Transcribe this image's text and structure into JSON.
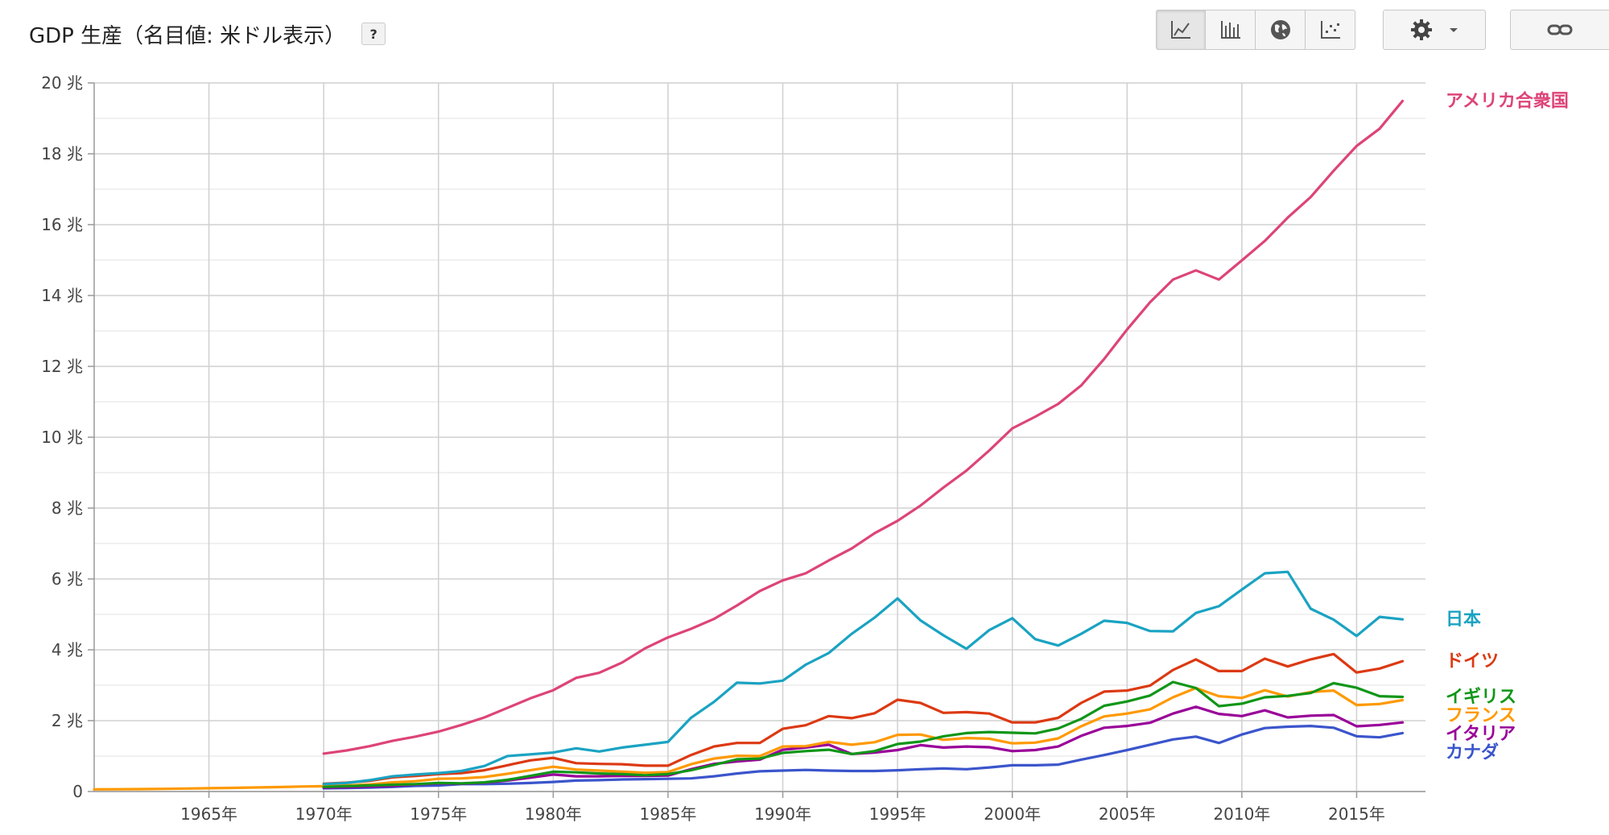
{
  "header": {
    "title": "GDP 生産（名目値: 米ドル表示）",
    "help_label": "?"
  },
  "toolbar": {
    "buttons": [
      {
        "name": "line-chart-button",
        "icon": "line-chart-icon",
        "active": true
      },
      {
        "name": "bar-chart-button",
        "icon": "bar-chart-icon",
        "active": false
      },
      {
        "name": "map-button",
        "icon": "globe-icon",
        "active": false
      },
      {
        "name": "scatter-button",
        "icon": "scatter-icon",
        "active": false
      }
    ],
    "settings_icon": "gear-icon",
    "link_icon": "link-icon"
  },
  "chart_data": {
    "type": "line",
    "title": "GDP 生産（名目値: 米ドル表示）",
    "xlabel": "",
    "ylabel": "",
    "xlim": [
      1960,
      2018
    ],
    "ylim": [
      0,
      20
    ],
    "y_ticks": [
      {
        "value": 0,
        "label": "0"
      },
      {
        "value": 2,
        "label": "2 兆"
      },
      {
        "value": 4,
        "label": "4 兆"
      },
      {
        "value": 6,
        "label": "6 兆"
      },
      {
        "value": 8,
        "label": "8 兆"
      },
      {
        "value": 10,
        "label": "10 兆"
      },
      {
        "value": 12,
        "label": "12 兆"
      },
      {
        "value": 14,
        "label": "14 兆"
      },
      {
        "value": 16,
        "label": "16 兆"
      },
      {
        "value": 18,
        "label": "18 兆"
      },
      {
        "value": 20,
        "label": "20 兆"
      }
    ],
    "x_ticks": [
      {
        "value": 1965,
        "label": "1965年"
      },
      {
        "value": 1970,
        "label": "1970年"
      },
      {
        "value": 1975,
        "label": "1975年"
      },
      {
        "value": 1980,
        "label": "1980年"
      },
      {
        "value": 1985,
        "label": "1985年"
      },
      {
        "value": 1990,
        "label": "1990年"
      },
      {
        "value": 1995,
        "label": "1995年"
      },
      {
        "value": 2000,
        "label": "2000年"
      },
      {
        "value": 2005,
        "label": "2005年"
      },
      {
        "value": 2010,
        "label": "2010年"
      },
      {
        "value": 2015,
        "label": "2015年"
      }
    ],
    "grid": true,
    "legend": "right-end labels",
    "series": [
      {
        "name": "アメリカ合衆国",
        "color": "#dd4477",
        "start": 1970,
        "values": [
          1.07,
          1.16,
          1.28,
          1.43,
          1.55,
          1.69,
          1.88,
          2.09,
          2.36,
          2.63,
          2.86,
          3.21,
          3.35,
          3.64,
          4.04,
          4.35,
          4.59,
          4.87,
          5.25,
          5.66,
          5.96,
          6.16,
          6.52,
          6.86,
          7.29,
          7.64,
          8.07,
          8.58,
          9.06,
          9.63,
          10.25,
          10.58,
          10.94,
          11.46,
          12.21,
          13.04,
          13.81,
          14.45,
          14.71,
          14.45,
          14.99,
          15.54,
          16.2,
          16.78,
          17.52,
          18.22,
          18.71,
          19.49
        ]
      },
      {
        "name": "日本",
        "color": "#1aa3c2",
        "start": 1970,
        "values": [
          0.21,
          0.24,
          0.32,
          0.43,
          0.48,
          0.52,
          0.58,
          0.72,
          1.0,
          1.05,
          1.1,
          1.22,
          1.13,
          1.24,
          1.32,
          1.4,
          2.08,
          2.53,
          3.07,
          3.05,
          3.13,
          3.58,
          3.91,
          4.45,
          4.91,
          5.45,
          4.83,
          4.41,
          4.03,
          4.56,
          4.89,
          4.3,
          4.12,
          4.45,
          4.82,
          4.76,
          4.53,
          4.52,
          5.04,
          5.23,
          5.7,
          6.16,
          6.2,
          5.16,
          4.85,
          4.39,
          4.93,
          4.86
        ]
      },
      {
        "name": "ドイツ",
        "color": "#dc3912",
        "start": 1970,
        "values": [
          0.22,
          0.25,
          0.3,
          0.4,
          0.44,
          0.49,
          0.52,
          0.6,
          0.74,
          0.88,
          0.95,
          0.8,
          0.78,
          0.77,
          0.73,
          0.73,
          1.03,
          1.27,
          1.37,
          1.37,
          1.77,
          1.87,
          2.13,
          2.07,
          2.21,
          2.59,
          2.5,
          2.22,
          2.24,
          2.2,
          1.95,
          1.95,
          2.08,
          2.5,
          2.82,
          2.85,
          2.99,
          3.43,
          3.73,
          3.4,
          3.4,
          3.75,
          3.53,
          3.73,
          3.88,
          3.36,
          3.47,
          3.68
        ]
      },
      {
        "name": "イギリス",
        "color": "#109618",
        "start": 1970,
        "values": [
          0.13,
          0.15,
          0.17,
          0.19,
          0.21,
          0.24,
          0.23,
          0.26,
          0.33,
          0.44,
          0.56,
          0.54,
          0.51,
          0.49,
          0.46,
          0.49,
          0.6,
          0.75,
          0.91,
          0.93,
          1.09,
          1.14,
          1.18,
          1.06,
          1.14,
          1.34,
          1.41,
          1.56,
          1.65,
          1.68,
          1.66,
          1.64,
          1.78,
          2.05,
          2.42,
          2.54,
          2.71,
          3.09,
          2.92,
          2.41,
          2.48,
          2.66,
          2.7,
          2.78,
          3.06,
          2.93,
          2.69,
          2.67
        ]
      },
      {
        "name": "フランス",
        "color": "#ff9900",
        "start": 1970,
        "values": [
          0.15,
          0.17,
          0.2,
          0.26,
          0.29,
          0.36,
          0.37,
          0.41,
          0.5,
          0.6,
          0.7,
          0.62,
          0.59,
          0.56,
          0.53,
          0.55,
          0.77,
          0.93,
          1.01,
          1.0,
          1.27,
          1.28,
          1.4,
          1.32,
          1.39,
          1.6,
          1.61,
          1.46,
          1.51,
          1.49,
          1.36,
          1.38,
          1.5,
          1.84,
          2.12,
          2.2,
          2.32,
          2.66,
          2.92,
          2.69,
          2.64,
          2.86,
          2.68,
          2.81,
          2.85,
          2.44,
          2.47,
          2.58
        ]
      },
      {
        "name": "イタリア",
        "color": "#990099",
        "start": 1970,
        "values": [
          0.11,
          0.12,
          0.14,
          0.16,
          0.2,
          0.23,
          0.22,
          0.25,
          0.31,
          0.39,
          0.48,
          0.43,
          0.43,
          0.44,
          0.44,
          0.45,
          0.63,
          0.78,
          0.85,
          0.9,
          1.18,
          1.24,
          1.32,
          1.06,
          1.1,
          1.17,
          1.31,
          1.24,
          1.27,
          1.25,
          1.14,
          1.17,
          1.27,
          1.57,
          1.8,
          1.85,
          1.94,
          2.2,
          2.39,
          2.19,
          2.13,
          2.29,
          2.09,
          2.14,
          2.16,
          1.84,
          1.88,
          1.95
        ]
      },
      {
        "name": "カナダ",
        "color": "#3b55cc",
        "start": 1970,
        "values": [
          0.09,
          0.1,
          0.11,
          0.13,
          0.16,
          0.17,
          0.21,
          0.21,
          0.22,
          0.24,
          0.27,
          0.31,
          0.32,
          0.34,
          0.35,
          0.36,
          0.37,
          0.43,
          0.51,
          0.57,
          0.59,
          0.61,
          0.59,
          0.58,
          0.58,
          0.6,
          0.63,
          0.65,
          0.63,
          0.68,
          0.74,
          0.74,
          0.76,
          0.9,
          1.03,
          1.17,
          1.32,
          1.47,
          1.55,
          1.37,
          1.61,
          1.79,
          1.83,
          1.85,
          1.8,
          1.56,
          1.53,
          1.65
        ]
      },
      {
        "name": "",
        "color": "#ff9900",
        "start": 1960,
        "values": [
          0.062,
          0.064,
          0.068,
          0.075,
          0.084,
          0.094,
          0.103,
          0.113,
          0.124,
          0.14,
          0.15
        ]
      }
    ]
  }
}
